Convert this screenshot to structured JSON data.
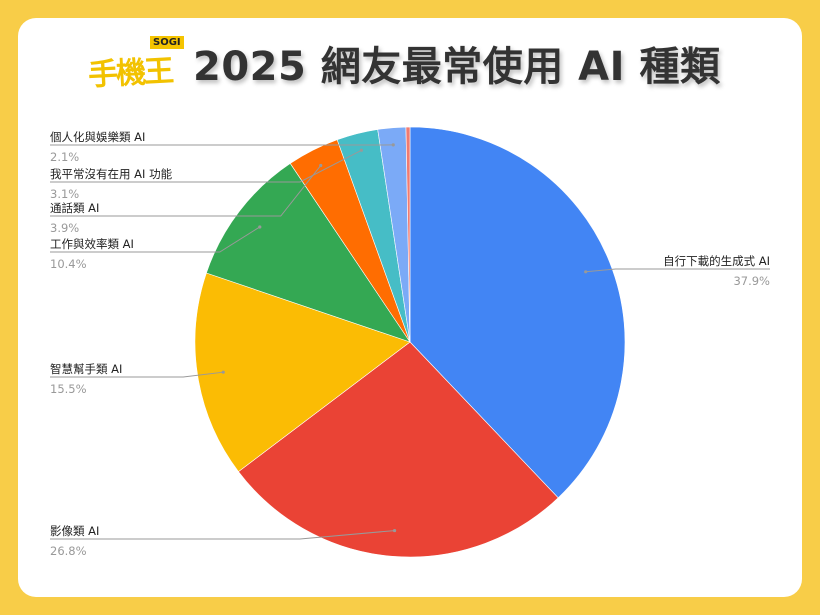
{
  "header": {
    "logo_text": "手機王",
    "logo_badge": "SOGI",
    "title": "2025 網友最常使用 AI 種類"
  },
  "chart_data": {
    "type": "pie",
    "title": "2025 網友最常使用 AI 種類",
    "start_angle": "top",
    "direction": "clockwise",
    "slices": [
      {
        "label": "自行下載的生成式 AI",
        "value": 37.9,
        "display": "37.9%",
        "color": "#4285f4"
      },
      {
        "label": "影像類 AI",
        "value": 26.8,
        "display": "26.8%",
        "color": "#ea4335"
      },
      {
        "label": "智慧幫手類 AI",
        "value": 15.5,
        "display": "15.5%",
        "color": "#fbbc04"
      },
      {
        "label": "工作與效率類 AI",
        "value": 10.4,
        "display": "10.4%",
        "color": "#34a853"
      },
      {
        "label": "通話類 AI",
        "value": 3.9,
        "display": "3.9%",
        "color": "#ff6d01"
      },
      {
        "label": "我平常沒有在用 AI 功能",
        "value": 3.1,
        "display": "3.1%",
        "color": "#46bdc6"
      },
      {
        "label": "個人化與娛樂類 AI",
        "value": 2.1,
        "display": "2.1%",
        "color": "#7baaf7"
      },
      {
        "label": "",
        "value": 0.3,
        "display": "",
        "color": "#f07b72"
      }
    ],
    "legend": "callout-labels"
  }
}
